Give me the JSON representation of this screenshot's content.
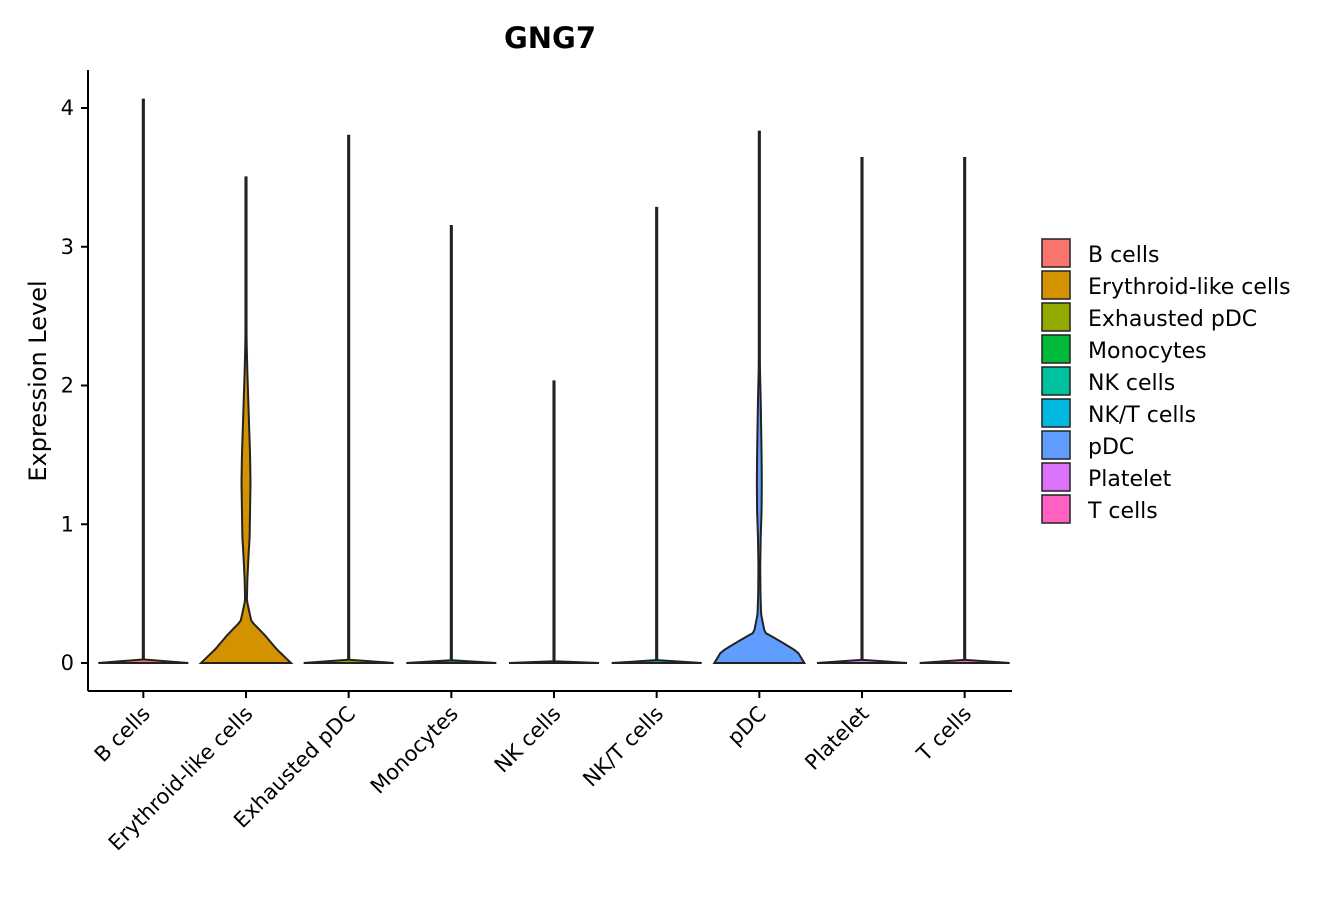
{
  "chart_data": {
    "type": "violin",
    "title": "GNG7",
    "xlabel": "",
    "ylabel": "Expression Level",
    "ylim": [
      -0.2,
      4.25
    ],
    "yticks": [
      0,
      1,
      2,
      3,
      4
    ],
    "categories": [
      "B cells",
      "Erythroid-like cells",
      "Exhausted pDC",
      "Monocytes",
      "NK cells",
      "NK/T cells",
      "pDC",
      "Platelet",
      "T cells"
    ],
    "max_values": [
      4.06,
      3.5,
      3.8,
      3.15,
      2.03,
      3.28,
      3.83,
      3.64,
      3.64
    ],
    "legend_placement": "right",
    "series": [
      {
        "name": "B cells",
        "color": "#F8766D",
        "max": 4.06
      },
      {
        "name": "Erythroid-like cells",
        "color": "#D39200",
        "max": 3.5
      },
      {
        "name": "Exhausted pDC",
        "color": "#93AA00",
        "max": 3.8
      },
      {
        "name": "Monocytes",
        "color": "#00BA38",
        "max": 3.15
      },
      {
        "name": "NK cells",
        "color": "#00C19F",
        "max": 2.03
      },
      {
        "name": "NK/T cells",
        "color": "#00B9E3",
        "max": 3.28
      },
      {
        "name": "pDC",
        "color": "#619CFF",
        "max": 3.83
      },
      {
        "name": "Platelet",
        "color": "#DB72FB",
        "max": 3.64
      },
      {
        "name": "T cells",
        "color": "#FF61C3",
        "max": 3.64
      }
    ],
    "density_profiles": {
      "Erythroid-like cells": [
        [
          0,
          1.0
        ],
        [
          0.1,
          0.68
        ],
        [
          0.2,
          0.42
        ],
        [
          0.3,
          0.12
        ],
        [
          0.45,
          0.02
        ],
        [
          0.6,
          0.03
        ],
        [
          0.8,
          0.06
        ],
        [
          0.9,
          0.08
        ],
        [
          1.1,
          0.09
        ],
        [
          1.3,
          0.1
        ],
        [
          1.5,
          0.09
        ],
        [
          1.7,
          0.07
        ],
        [
          1.9,
          0.05
        ],
        [
          2.1,
          0.03
        ],
        [
          2.3,
          0.015
        ],
        [
          2.6,
          0.005
        ],
        [
          3.0,
          0.001
        ],
        [
          3.5,
          0.001
        ]
      ],
      "pDC": [
        [
          0,
          1.0
        ],
        [
          0.08,
          0.85
        ],
        [
          0.15,
          0.5
        ],
        [
          0.22,
          0.12
        ],
        [
          0.35,
          0.04
        ],
        [
          0.5,
          0.025
        ],
        [
          0.7,
          0.02
        ],
        [
          0.9,
          0.03
        ],
        [
          1.1,
          0.05
        ],
        [
          1.3,
          0.055
        ],
        [
          1.5,
          0.05
        ],
        [
          1.7,
          0.04
        ],
        [
          1.9,
          0.03
        ],
        [
          2.1,
          0.015
        ],
        [
          2.4,
          0.006
        ],
        [
          3.0,
          0.001
        ],
        [
          3.83,
          0.001
        ]
      ],
      "default": [
        [
          0,
          1.0
        ],
        [
          0.005,
          0.6
        ],
        [
          0.012,
          0.002
        ],
        [
          1.0,
          0.001
        ],
        [
          4.0,
          0.001
        ]
      ]
    }
  }
}
